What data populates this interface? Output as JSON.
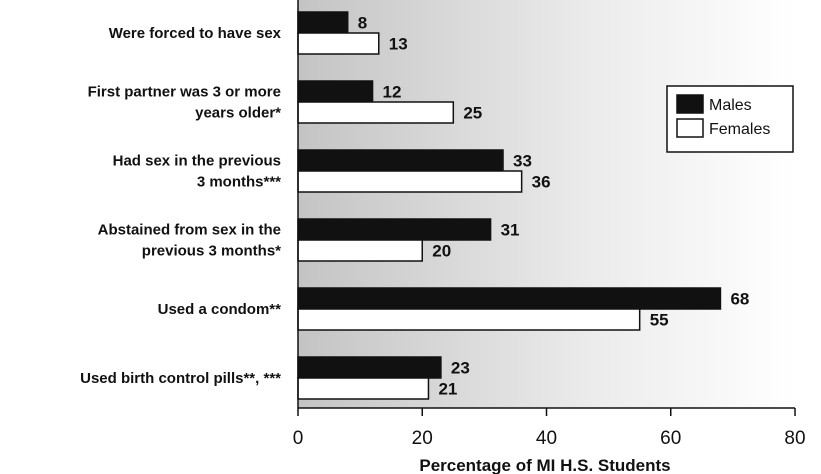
{
  "chart_data": {
    "type": "bar",
    "orientation": "horizontal",
    "categories": [
      [
        "Were forced to have sex"
      ],
      [
        "First partner was 3 or more",
        "years older*"
      ],
      [
        "Had sex in the previous",
        "3 months***"
      ],
      [
        "Abstained from sex in the",
        "previous 3 months*"
      ],
      [
        "Used a condom**"
      ],
      [
        "Used birth control pills**, ***"
      ]
    ],
    "series": [
      {
        "name": "Males",
        "color": "#111111",
        "values": [
          8,
          12,
          33,
          31,
          68,
          23
        ]
      },
      {
        "name": "Females",
        "color": "#ffffff",
        "values": [
          13,
          25,
          36,
          20,
          55,
          21
        ]
      }
    ],
    "xlabel": "Percentage of MI H.S. Students",
    "xlim": [
      0,
      80
    ],
    "xticks": [
      0,
      20,
      40,
      60,
      80
    ],
    "legend": "top-right",
    "grid": false
  }
}
